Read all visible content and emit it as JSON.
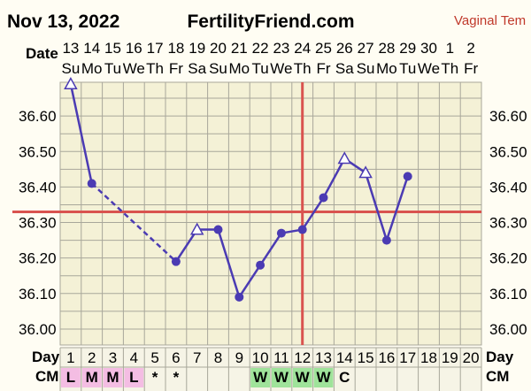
{
  "header": {
    "date_text": "Nov 13, 2022",
    "site": "FertilityFriend.com",
    "mode": "Vaginal Tem"
  },
  "row_labels": {
    "date": "Date",
    "day": "Day",
    "cm": "CM"
  },
  "colors": {
    "line": "#4b3bb3",
    "marker_fill": "#ffffff",
    "cover_line": "#d9534f",
    "grid": "#a8a79a",
    "plot_bg": "#f4f1d6",
    "cm_pink": "#f4bde3",
    "cm_green": "#9fe39a",
    "cm_neutral": "#f6f4e6"
  },
  "chart_data": {
    "type": "line",
    "title": "",
    "ylabel": "",
    "xlabel": "",
    "ylim": [
      35.955,
      36.695
    ],
    "y_ticks": [
      "36.00",
      "36.10",
      "36.20",
      "36.30",
      "36.40",
      "36.50",
      "36.60"
    ],
    "grid": true,
    "dates": [
      "13",
      "14",
      "15",
      "16",
      "17",
      "18",
      "19",
      "20",
      "21",
      "22",
      "23",
      "24",
      "25",
      "26",
      "27",
      "28",
      "29",
      "30",
      "1",
      "2"
    ],
    "weekdays": [
      "Su",
      "Mo",
      "Tu",
      "We",
      "Th",
      "Fr",
      "Sa",
      "Su",
      "Mo",
      "Tu",
      "We",
      "Th",
      "Fr",
      "Sa",
      "Su",
      "Mo",
      "Tu",
      "We",
      "Th",
      "Fr"
    ],
    "cycle_days": [
      "1",
      "2",
      "3",
      "4",
      "5",
      "6",
      "7",
      "8",
      "9",
      "10",
      "11",
      "12",
      "13",
      "14",
      "15",
      "16",
      "17",
      "18",
      "19",
      "20"
    ],
    "temps": [
      {
        "day": 1,
        "value": 36.69,
        "marker": "triangle"
      },
      {
        "day": 2,
        "value": 36.41,
        "marker": "circle"
      },
      {
        "day": 6,
        "value": 36.19,
        "marker": "circle"
      },
      {
        "day": 7,
        "value": 36.28,
        "marker": "triangle"
      },
      {
        "day": 8,
        "value": 36.28,
        "marker": "circle"
      },
      {
        "day": 9,
        "value": 36.09,
        "marker": "circle"
      },
      {
        "day": 10,
        "value": 36.18,
        "marker": "circle"
      },
      {
        "day": 11,
        "value": 36.27,
        "marker": "circle"
      },
      {
        "day": 12,
        "value": 36.28,
        "marker": "circle"
      },
      {
        "day": 13,
        "value": 36.37,
        "marker": "circle"
      },
      {
        "day": 14,
        "value": 36.48,
        "marker": "triangle"
      },
      {
        "day": 15,
        "value": 36.44,
        "marker": "triangle"
      },
      {
        "day": 16,
        "value": 36.25,
        "marker": "circle"
      },
      {
        "day": 17,
        "value": 36.43,
        "marker": "circle"
      }
    ],
    "dashed_segments": [
      [
        2,
        6
      ]
    ],
    "coverline": 36.33,
    "ovulation_day": 12,
    "cervical_mucus": [
      {
        "day": 1,
        "text": "L",
        "color": "pink"
      },
      {
        "day": 2,
        "text": "M",
        "color": "pink"
      },
      {
        "day": 3,
        "text": "M",
        "color": "pink"
      },
      {
        "day": 4,
        "text": "L",
        "color": "pink"
      },
      {
        "day": 5,
        "text": "*",
        "color": "none"
      },
      {
        "day": 6,
        "text": "*",
        "color": "none"
      },
      {
        "day": 10,
        "text": "W",
        "color": "green"
      },
      {
        "day": 11,
        "text": "W",
        "color": "green"
      },
      {
        "day": 12,
        "text": "W",
        "color": "green"
      },
      {
        "day": 13,
        "text": "W",
        "color": "green"
      },
      {
        "day": 14,
        "text": "C",
        "color": "none"
      }
    ]
  }
}
